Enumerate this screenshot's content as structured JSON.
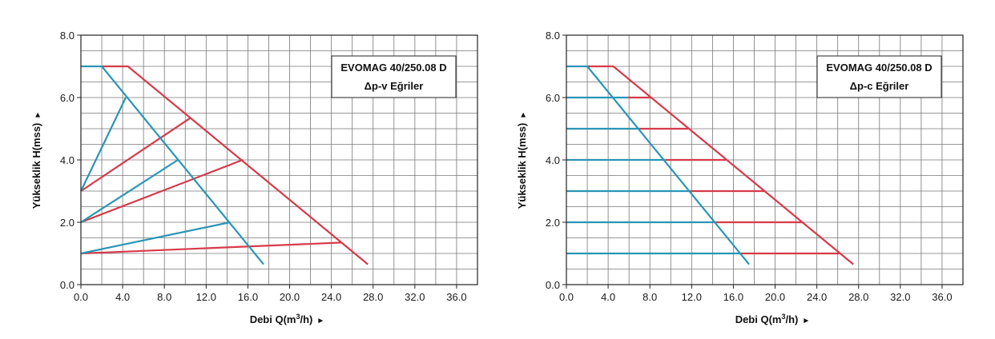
{
  "page": {
    "background": "#ffffff"
  },
  "colors": {
    "curve_red": "#d63a4a",
    "curve_blue": "#2a95b5",
    "grid": "#777777",
    "frame": "#222222"
  },
  "chart_data": [
    {
      "type": "line",
      "title": "EVOMAG 40/250.08 D",
      "subtitle": "Δp-v Eğriler",
      "xlabel": "Debi Q(m³/h)",
      "xlabel_parts": {
        "pre": "Debi Q(m",
        "sup": "3",
        "post": "/h)",
        "arrow": "►"
      },
      "ylabel": "Yükseklik H(mss)",
      "ylabel_arrow": "►",
      "xlim": [
        0,
        38
      ],
      "ylim": [
        0,
        8
      ],
      "x_ticks": [
        "0.0",
        "4.0",
        "8.0",
        "12.0",
        "16.0",
        "20.0",
        "24.0",
        "28.0",
        "32.0",
        "36.0"
      ],
      "y_ticks": [
        "0.0",
        "2.0",
        "4.0",
        "6.0",
        "8.0"
      ],
      "grid": true,
      "legend_position": "top-right",
      "series": [
        {
          "color": "#d63a4a",
          "points": [
            [
              2.0,
              7.0
            ],
            [
              4.5,
              7.0
            ],
            [
              27.5,
              0.65
            ]
          ]
        },
        {
          "color": "#d63a4a",
          "points": [
            [
              0.0,
              3.0
            ],
            [
              10.5,
              5.35
            ]
          ]
        },
        {
          "color": "#d63a4a",
          "points": [
            [
              0.0,
              2.0
            ],
            [
              15.5,
              4.0
            ]
          ]
        },
        {
          "color": "#d63a4a",
          "points": [
            [
              0.0,
              1.0
            ],
            [
              25.0,
              1.35
            ]
          ]
        },
        {
          "color": "#2a95b5",
          "points": [
            [
              0.0,
              7.0
            ],
            [
              2.0,
              7.0
            ],
            [
              17.5,
              0.65
            ]
          ]
        },
        {
          "color": "#2a95b5",
          "points": [
            [
              0.0,
              3.0
            ],
            [
              4.3,
              6.0
            ]
          ]
        },
        {
          "color": "#2a95b5",
          "points": [
            [
              0.0,
              2.0
            ],
            [
              9.3,
              4.0
            ]
          ]
        },
        {
          "color": "#2a95b5",
          "points": [
            [
              0.0,
              1.0
            ],
            [
              14.3,
              2.0
            ]
          ]
        }
      ]
    },
    {
      "type": "line",
      "title": "EVOMAG 40/250.08 D",
      "subtitle": "Δp-c Eğriler",
      "xlabel": "Debi Q(m³/h)",
      "xlabel_parts": {
        "pre": "Debi Q(m",
        "sup": "3",
        "post": "/h)",
        "arrow": "►"
      },
      "ylabel": "Yükseklik H(mss)",
      "ylabel_arrow": "►",
      "xlim": [
        0,
        38
      ],
      "ylim": [
        0,
        8
      ],
      "x_ticks": [
        "0.0",
        "4.0",
        "8.0",
        "12.0",
        "16.0",
        "20.0",
        "24.0",
        "28.0",
        "32.0",
        "36.0"
      ],
      "y_ticks": [
        "0.0",
        "2.0",
        "4.0",
        "6.0",
        "8.0"
      ],
      "grid": true,
      "legend_position": "top-right",
      "series": [
        {
          "color": "#d63a4a",
          "points": [
            [
              2.0,
              7.0
            ],
            [
              4.5,
              7.0
            ],
            [
              27.5,
              0.65
            ]
          ]
        },
        {
          "color": "#d63a4a",
          "points": [
            [
              5.9,
              6.0
            ],
            [
              8.1,
              6.0
            ]
          ]
        },
        {
          "color": "#d63a4a",
          "points": [
            [
              7.0,
              5.0
            ],
            [
              11.7,
              5.0
            ]
          ]
        },
        {
          "color": "#d63a4a",
          "points": [
            [
              9.5,
              4.0
            ],
            [
              15.4,
              4.0
            ]
          ]
        },
        {
          "color": "#d63a4a",
          "points": [
            [
              11.9,
              3.0
            ],
            [
              19.0,
              3.0
            ]
          ]
        },
        {
          "color": "#d63a4a",
          "points": [
            [
              14.3,
              2.0
            ],
            [
              22.6,
              2.0
            ]
          ]
        },
        {
          "color": "#d63a4a",
          "points": [
            [
              16.7,
              1.0
            ],
            [
              26.2,
              1.0
            ]
          ]
        },
        {
          "color": "#2a95b5",
          "points": [
            [
              0.0,
              7.0
            ],
            [
              2.0,
              7.0
            ],
            [
              17.5,
              0.65
            ]
          ]
        },
        {
          "color": "#2a95b5",
          "points": [
            [
              0.0,
              6.0
            ],
            [
              5.9,
              6.0
            ]
          ]
        },
        {
          "color": "#2a95b5",
          "points": [
            [
              0.0,
              5.0
            ],
            [
              7.0,
              5.0
            ]
          ]
        },
        {
          "color": "#2a95b5",
          "points": [
            [
              0.0,
              4.0
            ],
            [
              9.5,
              4.0
            ]
          ]
        },
        {
          "color": "#2a95b5",
          "points": [
            [
              0.0,
              3.0
            ],
            [
              11.9,
              3.0
            ]
          ]
        },
        {
          "color": "#2a95b5",
          "points": [
            [
              0.0,
              2.0
            ],
            [
              14.3,
              2.0
            ]
          ]
        },
        {
          "color": "#2a95b5",
          "points": [
            [
              0.0,
              1.0
            ],
            [
              16.7,
              1.0
            ]
          ]
        }
      ]
    }
  ]
}
